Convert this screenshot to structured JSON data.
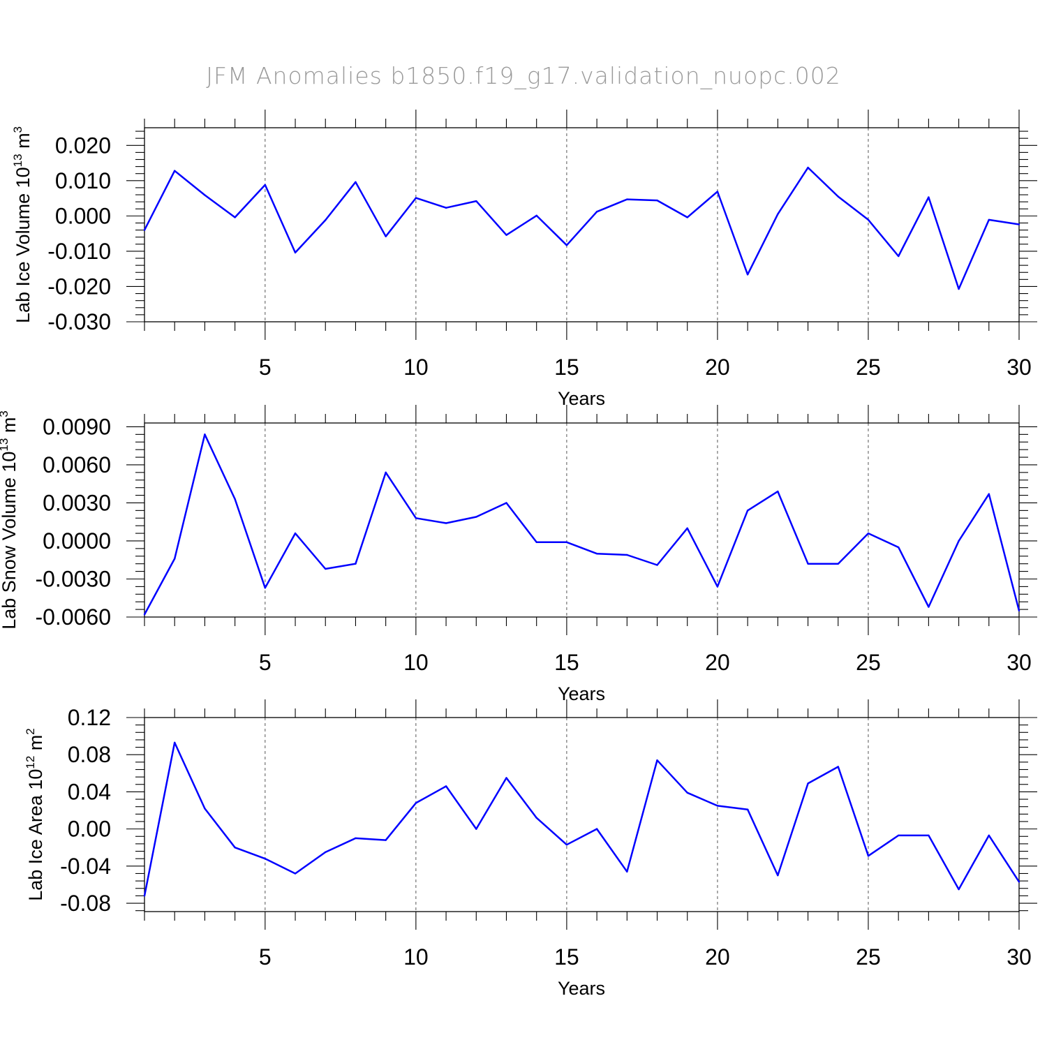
{
  "title": "JFM Anomalies b1850.f19_g17.validation_nuopc.002",
  "chart_data": [
    {
      "type": "line",
      "ylabel": {
        "prefix": "Lab Ice Volume 10",
        "exponent": "13",
        "unit": " m",
        "unit_exp": "3"
      },
      "xlabel": "Years",
      "xlim": [
        1,
        30
      ],
      "ylim": [
        -0.03,
        0.025
      ],
      "yticks": [
        -0.03,
        -0.02,
        -0.01,
        0.0,
        0.01,
        0.02
      ],
      "ytick_labels": [
        "-0.030",
        "-0.020",
        "-0.010",
        "0.000",
        "0.010",
        "0.020"
      ],
      "xticks": [
        5,
        10,
        15,
        20,
        25,
        30
      ],
      "xtick_labels": [
        "5",
        "10",
        "15",
        "20",
        "25",
        "30"
      ],
      "grid_x": [
        5,
        10,
        15,
        20,
        25
      ],
      "color": "#0000ff",
      "x": [
        1,
        2,
        3,
        4,
        5,
        6,
        7,
        8,
        9,
        10,
        11,
        12,
        13,
        14,
        15,
        16,
        17,
        18,
        19,
        20,
        21,
        22,
        23,
        24,
        25,
        26,
        27,
        28,
        29,
        30
      ],
      "values": [
        -0.004,
        0.0128,
        0.0059,
        -0.0004,
        0.0088,
        -0.0104,
        -0.0012,
        0.0096,
        -0.0058,
        0.0051,
        0.0023,
        0.0042,
        -0.0054,
        0.0001,
        -0.0083,
        0.0012,
        0.0047,
        0.0044,
        -0.0004,
        0.0069,
        -0.0166,
        0.0005,
        0.0137,
        0.0055,
        -0.0011,
        -0.0114,
        0.0053,
        -0.0207,
        -0.0011,
        -0.0024
      ]
    },
    {
      "type": "line",
      "ylabel": {
        "prefix": "Lab Snow Volume 10",
        "exponent": "13",
        "unit": " m",
        "unit_exp": "3"
      },
      "xlabel": "Years",
      "xlim": [
        1,
        30
      ],
      "ylim": [
        -0.006,
        0.0093
      ],
      "yticks": [
        -0.006,
        -0.003,
        0.0,
        0.003,
        0.006,
        0.009
      ],
      "ytick_labels": [
        "-0.0060",
        "-0.0030",
        "0.0000",
        "0.0030",
        "0.0060",
        "0.0090"
      ],
      "xticks": [
        5,
        10,
        15,
        20,
        25,
        30
      ],
      "xtick_labels": [
        "5",
        "10",
        "15",
        "20",
        "25",
        "30"
      ],
      "grid_x": [
        5,
        10,
        15,
        20,
        25
      ],
      "color": "#0000ff",
      "x": [
        1,
        2,
        3,
        4,
        5,
        6,
        7,
        8,
        9,
        10,
        11,
        12,
        13,
        14,
        15,
        16,
        17,
        18,
        19,
        20,
        21,
        22,
        23,
        24,
        25,
        26,
        27,
        28,
        29,
        30
      ],
      "values": [
        -0.0058,
        -0.0014,
        0.0084,
        0.0033,
        -0.0037,
        0.0006,
        -0.0022,
        -0.0018,
        0.0054,
        0.0018,
        0.0014,
        0.0019,
        0.003,
        -0.0001,
        -0.0001,
        -0.001,
        -0.0011,
        -0.0019,
        0.001,
        -0.0036,
        0.0024,
        0.0039,
        -0.0018,
        -0.0018,
        0.0006,
        -0.0005,
        -0.0052,
        0.0,
        0.0037,
        -0.0055
      ]
    },
    {
      "type": "line",
      "ylabel": {
        "prefix": "Lab Ice Area 10",
        "exponent": "12",
        "unit": " m",
        "unit_exp": "2"
      },
      "xlabel": "Years",
      "xlim": [
        1,
        30
      ],
      "ylim": [
        -0.089,
        0.12
      ],
      "yticks": [
        -0.08,
        -0.04,
        0.0,
        0.04,
        0.08,
        0.12
      ],
      "ytick_labels": [
        "-0.08",
        "-0.04",
        "0.00",
        "0.04",
        "0.08",
        "0.12"
      ],
      "xticks": [
        5,
        10,
        15,
        20,
        25,
        30
      ],
      "xtick_labels": [
        "5",
        "10",
        "15",
        "20",
        "25",
        "30"
      ],
      "grid_x": [
        5,
        10,
        15,
        20,
        25
      ],
      "color": "#0000ff",
      "x": [
        1,
        2,
        3,
        4,
        5,
        6,
        7,
        8,
        9,
        10,
        11,
        12,
        13,
        14,
        15,
        16,
        17,
        18,
        19,
        20,
        21,
        22,
        23,
        24,
        25,
        26,
        27,
        28,
        29,
        30
      ],
      "values": [
        -0.072,
        0.093,
        0.022,
        -0.02,
        -0.032,
        -0.048,
        -0.025,
        -0.01,
        -0.012,
        0.028,
        0.046,
        0.0,
        0.055,
        0.012,
        -0.017,
        0.0,
        -0.046,
        0.074,
        0.039,
        0.025,
        0.021,
        -0.05,
        0.049,
        0.067,
        -0.029,
        -0.007,
        -0.007,
        -0.065,
        -0.007,
        -0.057
      ]
    }
  ]
}
